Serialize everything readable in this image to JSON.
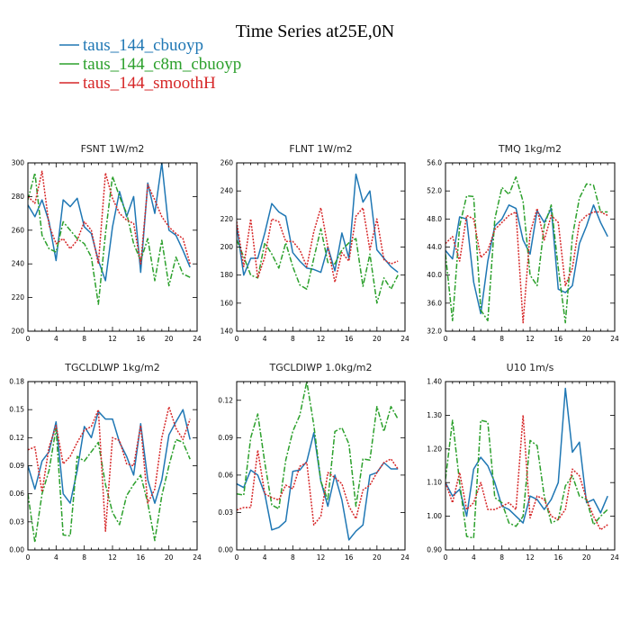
{
  "figure": {
    "title": "Time Series at25E,0N",
    "legend": [
      {
        "name": "taus_144_cbuoyp",
        "color": "#1f77b4",
        "dash": "solid"
      },
      {
        "name": "taus_144_c8m_cbuoyp",
        "color": "#2ca02c",
        "dash": "dashdot"
      },
      {
        "name": "taus_144_smoothH",
        "color": "#d62728",
        "dash": "dotted"
      }
    ]
  },
  "chart_data": [
    {
      "type": "line",
      "title": "FSNT   1W/m2",
      "x": [
        0,
        1,
        2,
        3,
        4,
        5,
        6,
        7,
        8,
        9,
        10,
        11,
        12,
        13,
        14,
        15,
        16,
        17,
        18,
        19,
        20,
        21,
        22,
        23
      ],
      "xlim": [
        0,
        24
      ],
      "xticks": [
        0,
        4,
        8,
        12,
        16,
        20,
        24
      ],
      "xticklabels": [
        "0",
        "4",
        "8",
        "12",
        "16",
        "20",
        "24"
      ],
      "ylim": [
        200,
        300
      ],
      "yticks": [
        200,
        220,
        240,
        260,
        280,
        300
      ],
      "yticklabels": [
        "200",
        "220",
        "240",
        "260",
        "280",
        "300"
      ],
      "series": [
        {
          "name": "taus_144_cbuoyp",
          "values": [
            275,
            268,
            278,
            265,
            242,
            278,
            274,
            279,
            262,
            258,
            242,
            230,
            262,
            283,
            268,
            280,
            235,
            288,
            270,
            300,
            260,
            257,
            248,
            238
          ]
        },
        {
          "name": "taus_144_c8m_cbuoyp",
          "values": [
            278,
            294,
            257,
            249,
            247,
            265,
            260,
            255,
            252,
            244,
            216,
            258,
            292,
            280,
            270,
            252,
            242,
            255,
            230,
            254,
            227,
            244,
            234,
            232
          ]
        },
        {
          "name": "taus_144_smoothH",
          "values": [
            280,
            276,
            295,
            263,
            252,
            255,
            249,
            254,
            265,
            260,
            240,
            294,
            279,
            270,
            266,
            264,
            240,
            287,
            278,
            268,
            262,
            258,
            255,
            240
          ]
        }
      ]
    },
    {
      "type": "line",
      "title": "FLNT   1W/m2",
      "x": [
        0,
        1,
        2,
        3,
        4,
        5,
        6,
        7,
        8,
        9,
        10,
        11,
        12,
        13,
        14,
        15,
        16,
        17,
        18,
        19,
        20,
        21,
        22,
        23
      ],
      "xlim": [
        0,
        24
      ],
      "xticks": [
        0,
        4,
        8,
        12,
        16,
        20,
        24
      ],
      "xticklabels": [
        "0",
        "4",
        "8",
        "12",
        "16",
        "20",
        "24"
      ],
      "ylim": [
        140,
        260
      ],
      "yticks": [
        140,
        160,
        180,
        200,
        220,
        240,
        260
      ],
      "yticklabels": [
        "140",
        "160",
        "180",
        "200",
        "220",
        "240",
        "260"
      ],
      "series": [
        {
          "name": "taus_144_cbuoyp",
          "values": [
            215,
            180,
            192,
            192,
            210,
            231,
            225,
            222,
            196,
            190,
            185,
            184,
            182,
            200,
            183,
            210,
            192,
            252,
            232,
            240,
            198,
            192,
            186,
            182
          ]
        },
        {
          "name": "taus_144_c8m_cbuoyp",
          "values": [
            205,
            193,
            180,
            178,
            203,
            195,
            185,
            203,
            186,
            173,
            170,
            192,
            213,
            189,
            188,
            198,
            203,
            206,
            172,
            195,
            160,
            178,
            170,
            180
          ]
        },
        {
          "name": "taus_144_smoothH",
          "values": [
            218,
            186,
            220,
            178,
            193,
            220,
            218,
            204,
            204,
            198,
            186,
            211,
            228,
            200,
            175,
            196,
            190,
            222,
            228,
            198,
            220,
            191,
            188,
            190
          ]
        }
      ]
    },
    {
      "type": "line",
      "title": "TMQ   1kg/m2",
      "x": [
        0,
        1,
        2,
        3,
        4,
        5,
        6,
        7,
        8,
        9,
        10,
        11,
        12,
        13,
        14,
        15,
        16,
        17,
        18,
        19,
        20,
        21,
        22,
        23
      ],
      "xlim": [
        0,
        24
      ],
      "xticks": [
        0,
        4,
        8,
        12,
        16,
        20,
        24
      ],
      "xticklabels": [
        "0",
        "4",
        "8",
        "12",
        "16",
        "20",
        "24"
      ],
      "ylim": [
        32.0,
        56.0
      ],
      "yticks": [
        32,
        36,
        40,
        44,
        48,
        52,
        56
      ],
      "yticklabels": [
        "32.0",
        "36.0",
        "40.0",
        "44.0",
        "48.0",
        "52.0",
        "56.0"
      ],
      "series": [
        {
          "name": "taus_144_cbuoyp",
          "values": [
            43.5,
            42.3,
            48.3,
            48.0,
            39.0,
            34.5,
            42.0,
            47.0,
            48.0,
            50.0,
            49.5,
            45.0,
            43.0,
            49.2,
            47.5,
            49.5,
            38.0,
            37.5,
            38.5,
            44.5,
            47.0,
            50.0,
            47.5,
            45.5
          ]
        },
        {
          "name": "taus_144_c8m_cbuoyp",
          "values": [
            43.0,
            33.5,
            47.0,
            51.3,
            51.2,
            35.0,
            33.5,
            48.0,
            52.5,
            51.5,
            54.0,
            50.5,
            40.0,
            38.5,
            47.0,
            50.0,
            41.0,
            33.2,
            45.5,
            51.0,
            53.0,
            52.8,
            49.0,
            49.0
          ]
        },
        {
          "name": "taus_144_smoothH",
          "values": [
            44.5,
            45.5,
            42.0,
            48.5,
            48.0,
            42.5,
            43.5,
            46.5,
            47.5,
            48.5,
            49.0,
            33.2,
            46.0,
            49.5,
            45.0,
            48.5,
            47.5,
            38.5,
            41.0,
            47.5,
            48.5,
            49.0,
            49.0,
            48.5
          ]
        }
      ]
    },
    {
      "type": "line",
      "title": "TGCLDLWP   1kg/m2",
      "x": [
        0,
        1,
        2,
        3,
        4,
        5,
        6,
        7,
        8,
        9,
        10,
        11,
        12,
        13,
        14,
        15,
        16,
        17,
        18,
        19,
        20,
        21,
        22,
        23
      ],
      "xlim": [
        0,
        24
      ],
      "xticks": [
        0,
        4,
        8,
        12,
        16,
        20,
        24
      ],
      "xticklabels": [
        "0",
        "4",
        "8",
        "12",
        "16",
        "20",
        "24"
      ],
      "ylim": [
        0.0,
        0.18
      ],
      "yticks": [
        0,
        0.03,
        0.06,
        0.09,
        0.12,
        0.15,
        0.18
      ],
      "yticklabels": [
        "0.00",
        "0.03",
        "0.06",
        "0.09",
        "0.12",
        "0.15",
        "0.18"
      ],
      "series": [
        {
          "name": "taus_144_cbuoyp",
          "values": [
            0.09,
            0.065,
            0.095,
            0.105,
            0.137,
            0.06,
            0.05,
            0.085,
            0.132,
            0.12,
            0.148,
            0.14,
            0.14,
            0.115,
            0.1,
            0.08,
            0.135,
            0.075,
            0.05,
            0.075,
            0.123,
            0.137,
            0.15,
            0.118
          ]
        },
        {
          "name": "taus_144_c8m_cbuoyp",
          "values": [
            0.06,
            0.008,
            0.06,
            0.085,
            0.13,
            0.016,
            0.015,
            0.1,
            0.095,
            0.105,
            0.115,
            0.07,
            0.04,
            0.027,
            0.058,
            0.07,
            0.08,
            0.05,
            0.01,
            0.058,
            0.09,
            0.118,
            0.115,
            0.097
          ]
        },
        {
          "name": "taus_144_smoothH",
          "values": [
            0.107,
            0.11,
            0.062,
            0.11,
            0.133,
            0.092,
            0.1,
            0.115,
            0.128,
            0.132,
            0.15,
            0.02,
            0.12,
            0.117,
            0.092,
            0.09,
            0.133,
            0.05,
            0.065,
            0.12,
            0.153,
            0.13,
            0.118,
            0.14
          ]
        }
      ]
    },
    {
      "type": "line",
      "title": "TGCLDIWP   1.0kg/m2",
      "x": [
        0,
        1,
        2,
        3,
        4,
        5,
        6,
        7,
        8,
        9,
        10,
        11,
        12,
        13,
        14,
        15,
        16,
        17,
        18,
        19,
        20,
        21,
        22,
        23
      ],
      "xlim": [
        0,
        24
      ],
      "xticks": [
        0,
        4,
        8,
        12,
        16,
        20,
        24
      ],
      "xticklabels": [
        "0",
        "4",
        "8",
        "12",
        "16",
        "20",
        "24"
      ],
      "ylim": [
        0.0,
        0.135
      ],
      "yticks": [
        0,
        0.03,
        0.06,
        0.09,
        0.12
      ],
      "yticklabels": [
        "0.00",
        "0.03",
        "0.06",
        "0.09",
        "0.12"
      ],
      "series": [
        {
          "name": "taus_144_cbuoyp",
          "values": [
            0.053,
            0.05,
            0.064,
            0.06,
            0.045,
            0.016,
            0.018,
            0.023,
            0.063,
            0.064,
            0.071,
            0.094,
            0.055,
            0.035,
            0.06,
            0.04,
            0.008,
            0.015,
            0.02,
            0.06,
            0.062,
            0.07,
            0.065,
            0.065
          ]
        },
        {
          "name": "taus_144_c8m_cbuoyp",
          "values": [
            0.045,
            0.044,
            0.09,
            0.109,
            0.07,
            0.036,
            0.033,
            0.072,
            0.095,
            0.108,
            0.135,
            0.1,
            0.055,
            0.04,
            0.095,
            0.098,
            0.085,
            0.035,
            0.073,
            0.072,
            0.115,
            0.095,
            0.115,
            0.105
          ]
        },
        {
          "name": "taus_144_smoothH",
          "values": [
            0.032,
            0.034,
            0.034,
            0.08,
            0.045,
            0.042,
            0.04,
            0.052,
            0.049,
            0.067,
            0.07,
            0.02,
            0.027,
            0.062,
            0.058,
            0.053,
            0.035,
            0.025,
            0.048,
            0.052,
            0.062,
            0.07,
            0.073,
            0.065
          ]
        }
      ]
    },
    {
      "type": "line",
      "title": "U10   1m/s",
      "x": [
        0,
        1,
        2,
        3,
        4,
        5,
        6,
        7,
        8,
        9,
        10,
        11,
        12,
        13,
        14,
        15,
        16,
        17,
        18,
        19,
        20,
        21,
        22,
        23
      ],
      "xlim": [
        0,
        24
      ],
      "xticks": [
        0,
        4,
        8,
        12,
        16,
        20,
        24
      ],
      "xticklabels": [
        "0",
        "4",
        "8",
        "12",
        "16",
        "20",
        "24"
      ],
      "ylim": [
        0.9,
        1.4
      ],
      "yticks": [
        0.9,
        1.0,
        1.1,
        1.2,
        1.3,
        1.4
      ],
      "yticklabels": [
        "0.90",
        "1.00",
        "1.10",
        "1.20",
        "1.30",
        "1.40"
      ],
      "series": [
        {
          "name": "taus_144_cbuoyp",
          "values": [
            1.1,
            1.06,
            1.08,
            1.0,
            1.14,
            1.175,
            1.15,
            1.1,
            1.03,
            1.02,
            1.0,
            0.98,
            1.06,
            1.05,
            1.02,
            1.05,
            1.1,
            1.38,
            1.19,
            1.22,
            1.04,
            1.05,
            1.01,
            1.06
          ]
        },
        {
          "name": "taus_144_c8m_cbuoyp",
          "values": [
            1.11,
            1.285,
            1.1,
            0.94,
            0.935,
            1.285,
            1.28,
            1.055,
            1.04,
            0.98,
            0.97,
            1.0,
            1.225,
            1.21,
            1.06,
            0.98,
            0.99,
            1.09,
            1.12,
            1.06,
            1.05,
            0.975,
            1.0,
            1.02
          ]
        },
        {
          "name": "taus_144_smoothH",
          "values": [
            1.1,
            1.04,
            1.13,
            1.02,
            1.04,
            1.1,
            1.02,
            1.02,
            1.03,
            1.04,
            1.02,
            1.3,
            0.995,
            1.06,
            1.05,
            1.0,
            0.99,
            1.02,
            1.14,
            1.12,
            1.05,
            1.0,
            0.96,
            0.975
          ]
        }
      ]
    }
  ]
}
